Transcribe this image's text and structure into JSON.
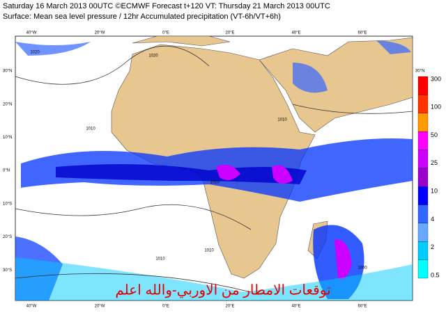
{
  "header": {
    "line1": "Saturday 16 March 2013 00UTC ©ECMWF Forecast t+120 VT: Thursday 21 March 2013 00UTC",
    "line2": "Surface: Mean sea level pressure / 12hr Accumulated precipitation (VT-6h/VT+6h)"
  },
  "map": {
    "lon_labels": [
      "40°W",
      "20°W",
      "0°E",
      "20°E",
      "40°E",
      "60°E"
    ],
    "lat_labels": [
      "30°N",
      "20°N",
      "10°N",
      "0°N",
      "10°S",
      "20°S",
      "30°S"
    ],
    "right_lat_label": "30°N",
    "isobar_labels": [
      "1020",
      "1020",
      "1010",
      "1010",
      "1010",
      "1010",
      "1010",
      "1000"
    ],
    "caption": "توقعات الامطار من الاوربي-والله اعلم"
  },
  "colorbar": {
    "labels": [
      "300",
      "100",
      "50",
      "25",
      "10",
      "4",
      "2",
      "0.5"
    ],
    "colors": [
      "#ff0000",
      "#ff3300",
      "#ff9900",
      "#ff00ff",
      "#cc00ff",
      "#9900cc",
      "#0000ff",
      "#3366ff",
      "#66aaff",
      "#00ccff",
      "#00ffff"
    ]
  }
}
